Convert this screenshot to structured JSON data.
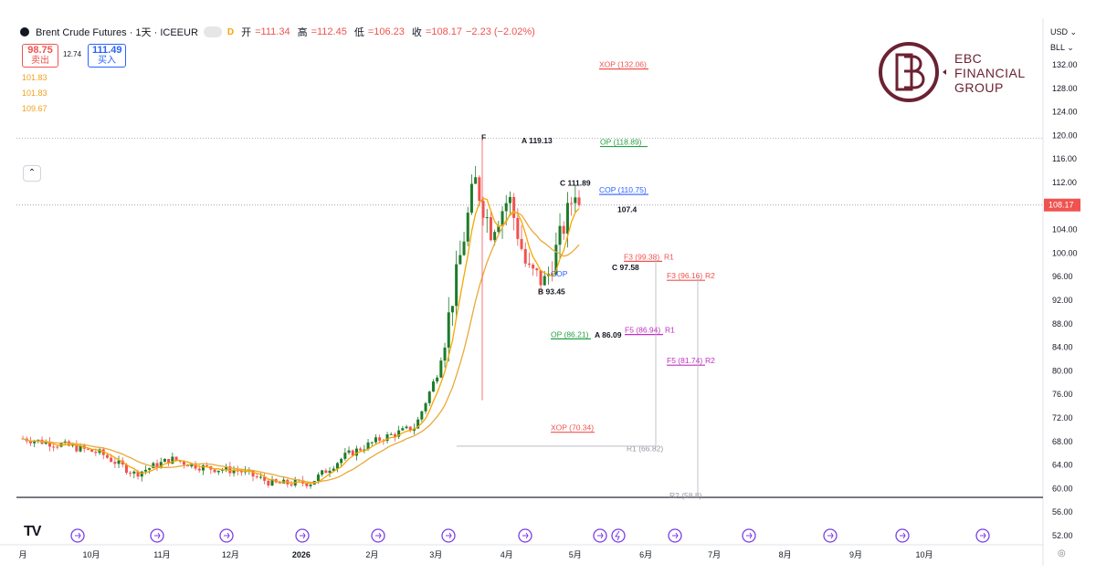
{
  "header": {
    "title": "Brent Crude Futures · 1天 · ICEEUR",
    "open_label": "开",
    "open": "=111.34",
    "high_label": "高",
    "high": "=112.45",
    "low_label": "低",
    "low": "=106.23",
    "close_label": "收",
    "close": "=108.17",
    "change": "−2.23 (−2.02%)",
    "delay_mark": "D"
  },
  "trade": {
    "sell_price": "98.75",
    "sell_label": "卖出",
    "spread": "12.74",
    "buy_price": "111.49",
    "buy_label": "买入"
  },
  "ma_values": [
    "101.83",
    "101.83",
    "109.67"
  ],
  "collapse_icon": "chevron-up-icon",
  "logo": {
    "line1": "EBC",
    "line2": "FINANCIAL",
    "line3": "GROUP"
  },
  "right_controls": {
    "currency": "USD",
    "unit": "BLL"
  },
  "brand_mark": "tradingview-logo",
  "colors": {
    "up": "#1e7b2a",
    "down": "#ef5350",
    "ma_fast": "#f7a600",
    "ma_slow": "#e9a93b",
    "last_price": "#ef5350",
    "purple": "#c030c0",
    "blue": "#2962ff",
    "green": "#26a043"
  },
  "chart_data": {
    "type": "candlestick",
    "timeframe": "1天",
    "y_axis": {
      "min": 52,
      "max": 132,
      "ticks": [
        "132.00",
        "128.00",
        "124.00",
        "120.00",
        "116.00",
        "112.00",
        "108.00",
        "104.00",
        "100.00",
        "96.00",
        "92.00",
        "88.00",
        "84.00",
        "80.00",
        "76.00",
        "72.00",
        "68.00",
        "64.00",
        "60.00",
        "56.00",
        "52.00"
      ]
    },
    "x_axis": {
      "labels": [
        {
          "text": "月",
          "date": "2025-09"
        },
        {
          "text": "10月",
          "date": "2025-10"
        },
        {
          "text": "11月",
          "date": "2025-11"
        },
        {
          "text": "12月",
          "date": "2025-12"
        },
        {
          "text": "2026",
          "date": "2026-01"
        },
        {
          "text": "2月",
          "date": "2026-02"
        },
        {
          "text": "3月",
          "date": "2026-03"
        },
        {
          "text": "4月",
          "date": "2026-04"
        },
        {
          "text": "5月",
          "date": "2026-05"
        },
        {
          "text": "6月",
          "date": "2026-06"
        },
        {
          "text": "7月",
          "date": "2026-07"
        },
        {
          "text": "8月",
          "date": "2026-08"
        },
        {
          "text": "9月",
          "date": "2026-09"
        },
        {
          "text": "10月",
          "date": "2026-10"
        }
      ]
    },
    "last_price": "108.17",
    "price_path": [
      {
        "date": "2025-09-01",
        "close": 68.5
      },
      {
        "date": "2025-09-20",
        "close": 67.3
      },
      {
        "date": "2025-10-05",
        "close": 66.0
      },
      {
        "date": "2025-10-20",
        "close": 62.5
      },
      {
        "date": "2025-11-05",
        "close": 65.0
      },
      {
        "date": "2025-11-20",
        "close": 63.5
      },
      {
        "date": "2025-12-05",
        "close": 63.0
      },
      {
        "date": "2025-12-20",
        "close": 60.8
      },
      {
        "date": "2026-01-05",
        "close": 61.0
      },
      {
        "date": "2026-01-20",
        "close": 65.5
      },
      {
        "date": "2026-02-05",
        "close": 68.5
      },
      {
        "date": "2026-02-20",
        "close": 70.5
      },
      {
        "date": "2026-03-02",
        "close": 80.0
      },
      {
        "date": "2026-03-10",
        "close": 96.0
      },
      {
        "date": "2026-03-18",
        "close": 112.5
      },
      {
        "date": "2026-03-25",
        "close": 104.0
      },
      {
        "date": "2026-04-02",
        "close": 109.5
      },
      {
        "date": "2026-04-10",
        "close": 97.0
      },
      {
        "date": "2026-04-18",
        "close": 95.0
      },
      {
        "date": "2026-04-26",
        "close": 104.5
      },
      {
        "date": "2026-05-01",
        "close": 111.0
      },
      {
        "date": "2026-05-04",
        "close": 108.17
      }
    ],
    "annotations": [
      {
        "text": "XOP (132.06)",
        "price": 132.06,
        "color": "#ef5350"
      },
      {
        "text": "A 119.13",
        "price": 119.13,
        "color": "#131722"
      },
      {
        "text": "OP (118.89)",
        "price": 118.89,
        "color": "#26a043"
      },
      {
        "text": "C 111.89",
        "price": 111.89,
        "color": "#131722"
      },
      {
        "text": "COP (110.75)",
        "price": 110.75,
        "color": "#2962ff"
      },
      {
        "text": "107.4",
        "price": 107.4,
        "color": "#131722"
      },
      {
        "text": "F3 (99.38)",
        "price": 99.38,
        "color": "#ef5350"
      },
      {
        "text": "R1",
        "price": 99.38,
        "color": "#ef5350"
      },
      {
        "text": "C 97.58",
        "price": 97.58,
        "color": "#131722"
      },
      {
        "text": "F3 (96.16)",
        "price": 96.16,
        "color": "#ef5350"
      },
      {
        "text": "R2",
        "price": 96.16,
        "color": "#ef5350"
      },
      {
        "text": "COP",
        "price": 96.5,
        "color": "#2962ff"
      },
      {
        "text": "B 93.45",
        "price": 93.45,
        "color": "#131722"
      },
      {
        "text": "F5 (86.94)",
        "price": 86.94,
        "color": "#c030c0"
      },
      {
        "text": "R1",
        "price": 86.94,
        "color": "#c030c0"
      },
      {
        "text": "OP (86.21)",
        "price": 86.21,
        "color": "#26a043"
      },
      {
        "text": "A 86.09",
        "price": 86.09,
        "color": "#131722"
      },
      {
        "text": "F5 (81.74)",
        "price": 81.74,
        "color": "#c030c0"
      },
      {
        "text": "R2",
        "price": 81.74,
        "color": "#c030c0"
      },
      {
        "text": "XOP (70.34)",
        "price": 70.34,
        "color": "#ef5350"
      },
      {
        "text": "R1 (66.82)",
        "price": 66.82,
        "color": "#9598a1"
      },
      {
        "text": "R2 (58.8)",
        "price": 58.8,
        "color": "#9598a1"
      },
      {
        "text": "F",
        "price": 119.5,
        "color": "#131722"
      }
    ]
  }
}
